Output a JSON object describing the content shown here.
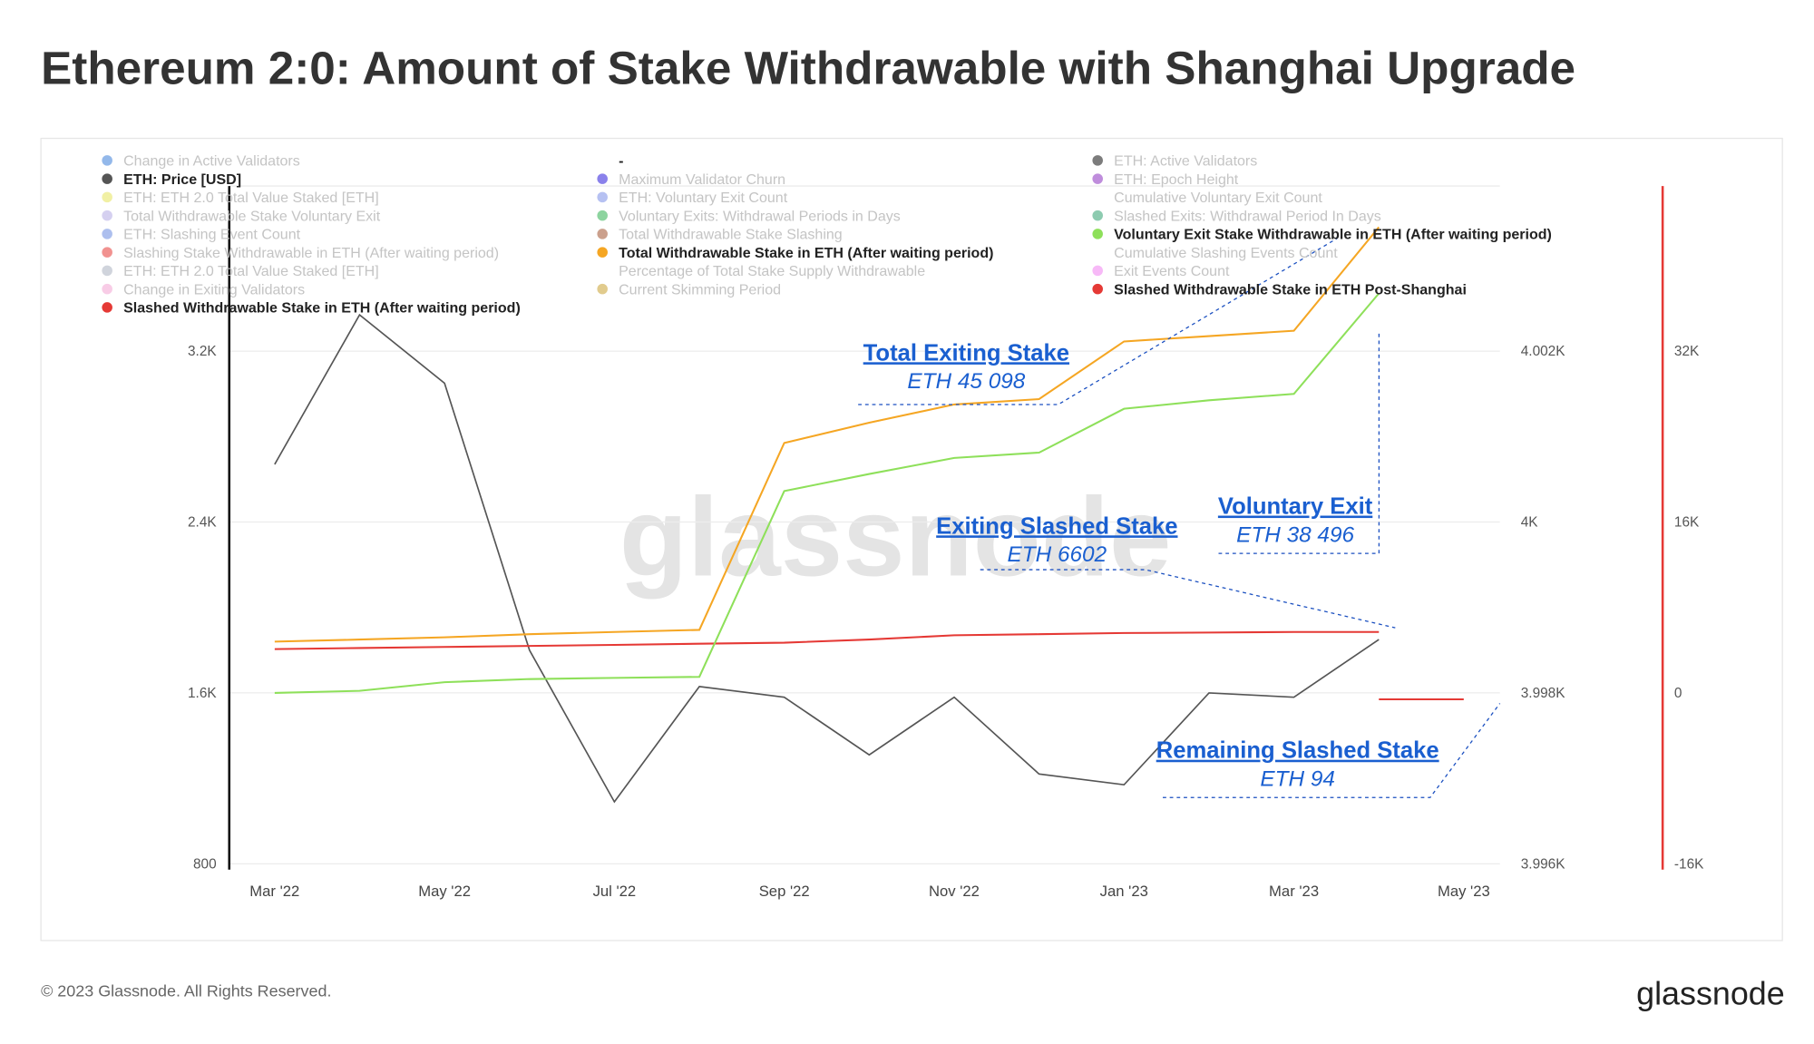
{
  "chart_data": {
    "type": "line",
    "title": "Ethereum 2:0: Amount of Stake Withdrawable with Shanghai Upgrade",
    "footer": "© 2023 Glassnode. All Rights Reserved.",
    "brand": "glassnode",
    "x": [
      "2022-03",
      "2022-04",
      "2022-05",
      "2022-06",
      "2022-07",
      "2022-08",
      "2022-09",
      "2022-10",
      "2022-11",
      "2022-12",
      "2023-01",
      "2023-02",
      "2023-03",
      "2023-04",
      "2023-05"
    ],
    "xlim": [
      "2022-02",
      "2023-06"
    ],
    "xticks": [
      {
        "value": "2022-03",
        "label": "Mar '22"
      },
      {
        "value": "2022-05",
        "label": "May '22"
      },
      {
        "value": "2022-07",
        "label": "Jul '22"
      },
      {
        "value": "2022-09",
        "label": "Sep '22"
      },
      {
        "value": "2022-11",
        "label": "Nov '22"
      },
      {
        "value": "2023-01",
        "label": "Jan '23"
      },
      {
        "value": "2023-03",
        "label": "Mar '23"
      },
      {
        "value": "2023-05",
        "label": "May '23"
      }
    ],
    "ylim": [
      800,
      4000
    ],
    "yticks": [
      800,
      {
        "value": 1600,
        "label": "1.6K"
      },
      {
        "value": 2400,
        "label": "2.4K"
      },
      {
        "value": 3200,
        "label": "3.2K"
      }
    ],
    "y2lim": [
      3996,
      4004
    ],
    "y2ticks": [
      {
        "value": 3996,
        "label": "3.996K"
      },
      {
        "value": 3998,
        "label": "3.998K"
      },
      {
        "value": 4000,
        "label": "4K"
      },
      {
        "value": 4002,
        "label": "4.002K"
      }
    ],
    "y3lim": [
      -16000,
      48000
    ],
    "y3ticks": [
      {
        "value": -16000,
        "label": "-16K"
      },
      0,
      {
        "value": 16000,
        "label": "16K"
      },
      {
        "value": 32000,
        "label": "32K"
      }
    ],
    "y3color": "#e53935",
    "grid": true,
    "series": [
      {
        "name": "Change in Active Validators",
        "color": "#3b7dd8",
        "hidden": true
      },
      {
        "name": "ETH: Price [USD]",
        "color": "#555555",
        "values": [
          2670,
          3370,
          3050,
          1800,
          1090,
          1630,
          1580,
          1310,
          1580,
          1220,
          1170,
          1600,
          1580,
          1850,
          null
        ]
      },
      {
        "name": "ETH: ETH 2.0 Total Value Staked [ETH]",
        "color": "#e6e35a",
        "hidden": true
      },
      {
        "name": "Total Withdrawable Stake Voluntary Exit",
        "color": "#b3a9e3",
        "hidden": true
      },
      {
        "name": "ETH: Slashing Event Count",
        "color": "#6a8be0",
        "hidden": true
      },
      {
        "name": "Slashing Stake Withdrawable in ETH (After waiting period)",
        "color": "#e53935",
        "hidden": true
      },
      {
        "name": "ETH: ETH 2.0 Total Value Staked [ETH]",
        "color": "#aab0c0",
        "hidden": true
      },
      {
        "name": "Change in Exiting Validators",
        "color": "#f2a2d2",
        "hidden": true
      },
      {
        "name": "Slashed Withdrawable Stake in ETH (After waiting period)",
        "color": "#e53935",
        "axis": "y3",
        "values": [
          4100,
          4200,
          4300,
          4400,
          4500,
          4600,
          4700,
          5000,
          5400,
          5500,
          5600,
          5650,
          5700,
          5700,
          null
        ]
      },
      {
        "name": "-",
        "hidden": false
      },
      {
        "name": "Maximum Validator Churn",
        "color": "#2a1adb",
        "hidden": true
      },
      {
        "name": "ETH: Voluntary Exit Count",
        "color": "#7a8ee8",
        "hidden": true
      },
      {
        "name": "Voluntary Exits: Withdrawal Periods in Days",
        "color": "#30b050",
        "hidden": true
      },
      {
        "name": "Total Withdrawable Stake Slashing",
        "color": "#a0522d",
        "hidden": true
      },
      {
        "name": "Total Withdrawable Stake in ETH (After waiting period)",
        "color": "#f5a623",
        "axis": "y3",
        "values": [
          4800,
          5000,
          5200,
          5500,
          5700,
          5900,
          23400,
          25300,
          27000,
          27500,
          32900,
          33400,
          33900,
          43600,
          null
        ]
      },
      {
        "name": "Percentage of Total Stake Supply Withdrawable",
        "hidden": true
      },
      {
        "name": "Current Skimming Period",
        "color": "#c8a030",
        "hidden": true
      },
      {
        "name": "ETH: Active Validators",
        "color": "#111111",
        "hidden": true
      },
      {
        "name": "ETH: Epoch Height",
        "color": "#8a30c0",
        "hidden": true
      },
      {
        "name": "Cumulative Voluntary Exit Count",
        "hidden": true
      },
      {
        "name": "Slashed Exits: Withdrawal Period In Days",
        "color": "#30a070",
        "hidden": true
      },
      {
        "name": "Voluntary Exit Stake Withdrawable in ETH (After waiting period)",
        "color": "#8ee05a",
        "axis": "y3",
        "values": [
          0,
          200,
          1000,
          1300,
          1400,
          1500,
          18900,
          20500,
          22000,
          22500,
          26600,
          27400,
          28000,
          37400,
          null
        ]
      },
      {
        "name": "Cumulative Slashing Events Count",
        "hidden": true
      },
      {
        "name": "Exit Events Count",
        "color": "#f080f0",
        "hidden": true
      },
      {
        "name": "Slashed Withdrawable Stake in ETH Post-Shanghai",
        "color": "#e53935",
        "axis": "y3",
        "values": [
          null,
          null,
          null,
          null,
          null,
          null,
          null,
          null,
          null,
          null,
          null,
          null,
          null,
          -600,
          -600
        ]
      }
    ],
    "annotations": [
      {
        "title": "Total Exiting Stake",
        "value": "ETH 45 098"
      },
      {
        "title": "Exiting Slashed Stake",
        "value": "ETH 6602"
      },
      {
        "title": "Voluntary Exit",
        "value": "ETH 38 496"
      },
      {
        "title": "Remaining Slashed Stake",
        "value": "ETH 94"
      }
    ]
  }
}
